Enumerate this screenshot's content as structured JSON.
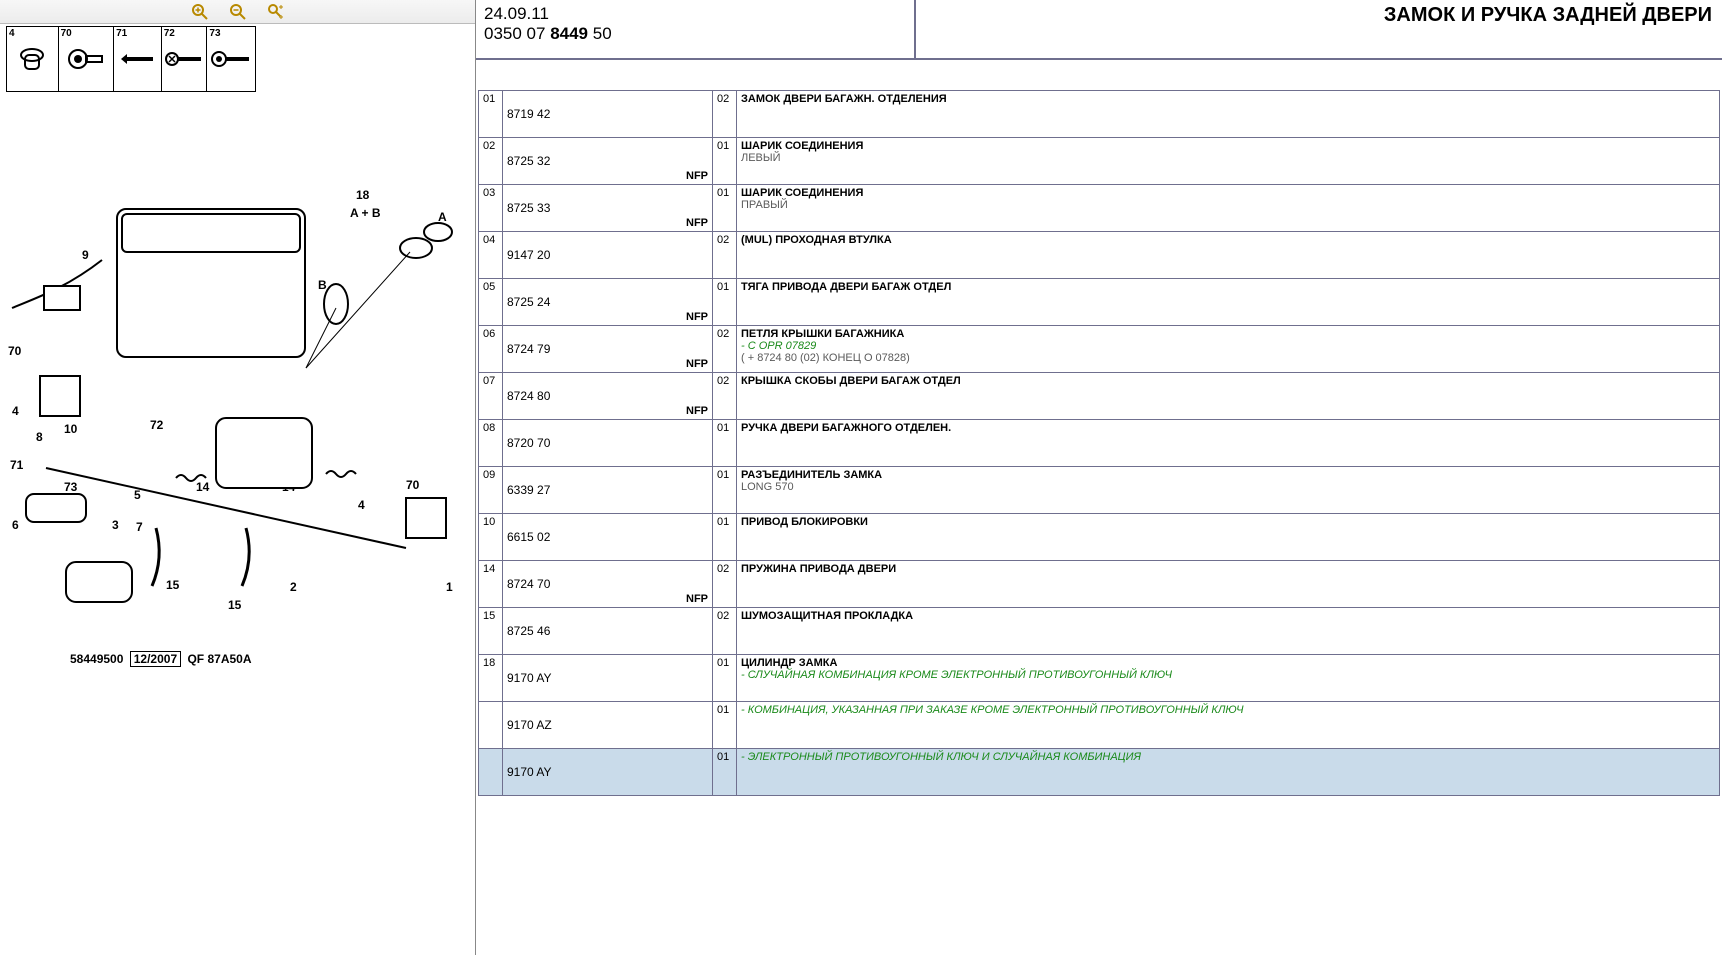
{
  "toolbar": {
    "zoomIn": "zoom-in",
    "zoomOut": "zoom-out",
    "zoomFit": "zoom-fit"
  },
  "thumbs": [
    {
      "label": "4"
    },
    {
      "label": "70"
    },
    {
      "label": "71"
    },
    {
      "label": "72"
    },
    {
      "label": "73"
    }
  ],
  "diagram": {
    "caption_id": "58449500",
    "caption_date": "12/2007",
    "caption_code": "QF 87A50A",
    "callouts": [
      "1",
      "2",
      "3",
      "4",
      "5",
      "6",
      "7",
      "8",
      "9",
      "10",
      "14",
      "15",
      "18",
      "70",
      "71",
      "72",
      "73",
      "A",
      "B",
      "A + B"
    ]
  },
  "header": {
    "date": "24.09.11",
    "code_pre": "0350 07 ",
    "code_bold": "8449",
    "code_post": " 50",
    "title": "ЗАМОК И РУЧКА ЗАДНЕЙ ДВЕРИ"
  },
  "rows": [
    {
      "idx": "01",
      "part": "8719 42",
      "nfp": false,
      "qty": "02",
      "title": "ЗАМОК ДВЕРИ БАГАЖН. ОТДЕЛЕНИЯ",
      "sub": "",
      "green": ""
    },
    {
      "idx": "02",
      "part": "8725 32",
      "nfp": true,
      "qty": "01",
      "title": "ШАРИК СОЕДИНЕНИЯ",
      "sub": "ЛЕВЫЙ",
      "green": ""
    },
    {
      "idx": "03",
      "part": "8725 33",
      "nfp": true,
      "qty": "01",
      "title": "ШАРИК СОЕДИНЕНИЯ",
      "sub": "ПРАВЫЙ",
      "green": ""
    },
    {
      "idx": "04",
      "part": "9147 20",
      "nfp": false,
      "qty": "02",
      "title": "(MUL) ПРОХОДНАЯ ВТУЛКА",
      "sub": "",
      "green": ""
    },
    {
      "idx": "05",
      "part": "8725 24",
      "nfp": true,
      "qty": "01",
      "title": "ТЯГА ПРИВОДА ДВЕРИ БАГАЖ ОТДЕЛ",
      "sub": "",
      "green": ""
    },
    {
      "idx": "06",
      "part": "8724 79",
      "nfp": true,
      "qty": "02",
      "title": "ПЕТЛЯ КРЫШКИ БАГАЖНИКА",
      "sub": "( + 8724 80 (02) КОНЕЦ О 07828)",
      "green": "- С OPR 07829"
    },
    {
      "idx": "07",
      "part": "8724 80",
      "nfp": true,
      "qty": "02",
      "title": "КРЫШКА СКОБЫ ДВЕРИ БАГАЖ ОТДЕЛ",
      "sub": "",
      "green": ""
    },
    {
      "idx": "08",
      "part": "8720 70",
      "nfp": false,
      "qty": "01",
      "title": "РУЧКА ДВЕРИ БАГАЖНОГО ОТДЕЛЕН.",
      "sub": "",
      "green": ""
    },
    {
      "idx": "09",
      "part": "6339 27",
      "nfp": false,
      "qty": "01",
      "title": "РАЗЪЕДИНИТЕЛЬ ЗАМКА",
      "sub": "LONG 570",
      "green": ""
    },
    {
      "idx": "10",
      "part": "6615 02",
      "nfp": false,
      "qty": "01",
      "title": "ПРИВОД БЛОКИРОВКИ",
      "sub": "",
      "green": ""
    },
    {
      "idx": "14",
      "part": "8724 70",
      "nfp": true,
      "qty": "02",
      "title": "ПРУЖИНА ПРИВОДА ДВЕРИ",
      "sub": "",
      "green": ""
    },
    {
      "idx": "15",
      "part": "8725 46",
      "nfp": false,
      "qty": "02",
      "title": "ШУМОЗАЩИТНАЯ ПРОКЛАДКА",
      "sub": "",
      "green": ""
    },
    {
      "idx": "18",
      "part": "9170 AY",
      "nfp": false,
      "qty": "01",
      "title": "ЦИЛИНДР ЗАМКА",
      "sub": "",
      "green": "- СЛУЧАЙНАЯ КОМБИНАЦИЯ КРОМЕ ЭЛЕКТРОННЫЙ ПРОТИВОУГОННЫЙ КЛЮЧ"
    },
    {
      "idx": "",
      "part": "9170 AZ",
      "nfp": false,
      "qty": "01",
      "title": "",
      "sub": "",
      "green": "- КОМБИНАЦИЯ, УКАЗАННАЯ ПРИ ЗАКАЗЕ КРОМЕ ЭЛЕКТРОННЫЙ ПРОТИВОУГОННЫЙ КЛЮЧ"
    },
    {
      "idx": "",
      "part": "9170 AY",
      "nfp": false,
      "qty": "01",
      "title": "",
      "sub": "",
      "green": "- ЭЛЕКТРОННЫЙ ПРОТИВОУГОННЫЙ КЛЮЧ И СЛУЧАЙНАЯ КОМБИНАЦИЯ",
      "selected": true
    }
  ],
  "labels": {
    "nfp": "NFP"
  }
}
